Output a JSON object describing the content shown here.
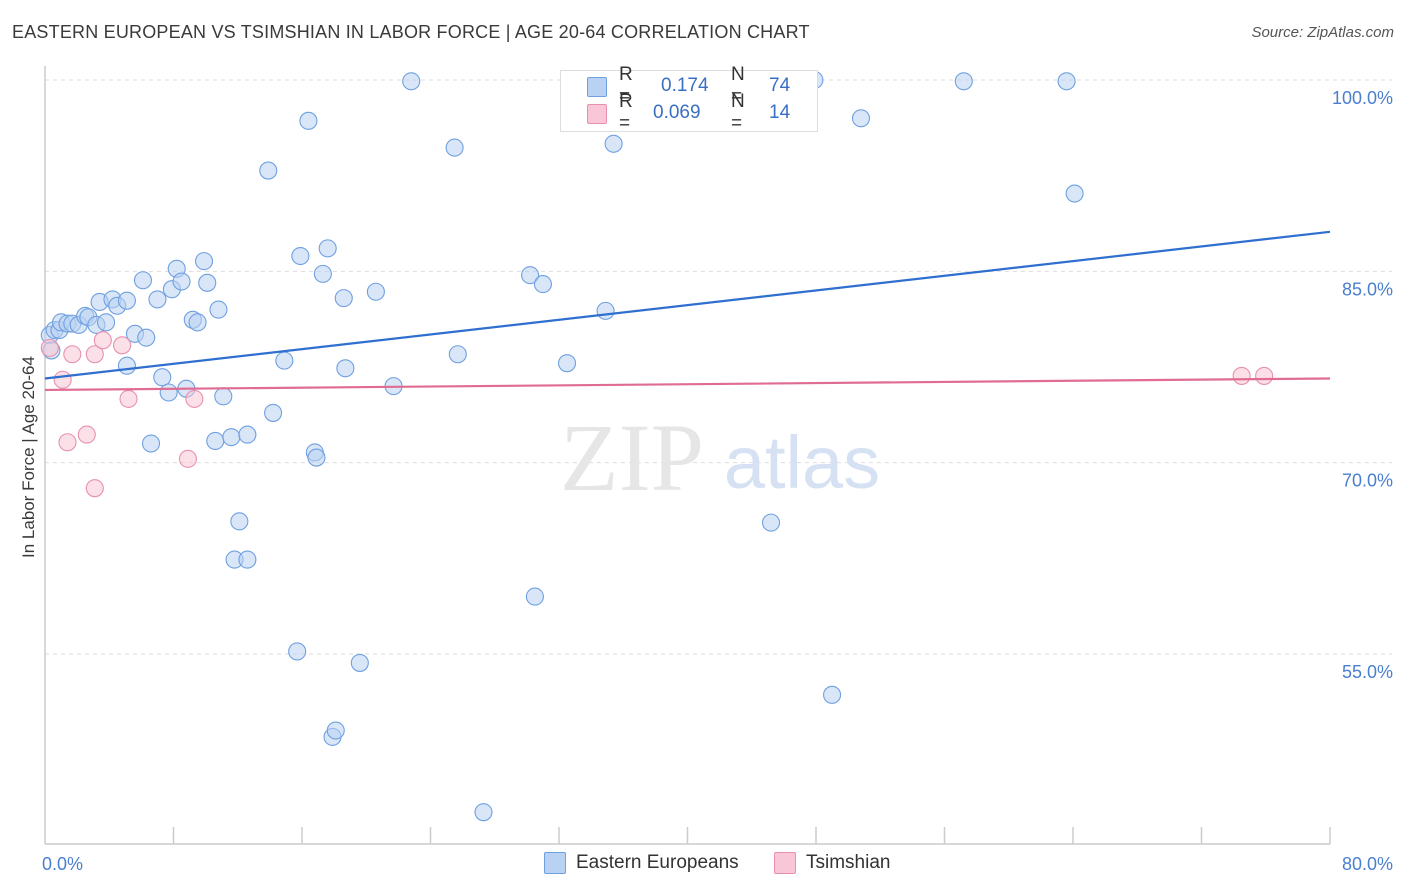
{
  "title": "EASTERN EUROPEAN VS TSIMSHIAN IN LABOR FORCE | AGE 20-64 CORRELATION CHART",
  "source": "Source: ZipAtlas.com",
  "legend": {
    "r_label": "R =",
    "n_label": "N =",
    "series": [
      {
        "name": "Eastern Europeans",
        "r": "0.174",
        "n": "74",
        "color": "#6fa0e0",
        "fill": "#b9d2f3"
      },
      {
        "name": "Tsimshian",
        "r": "0.069",
        "n": "14",
        "color": "#e890ae",
        "fill": "#f8c6d6"
      }
    ]
  },
  "chart_data": {
    "type": "scatter",
    "title": "EASTERN EUROPEAN VS TSIMSHIAN IN LABOR FORCE | AGE 20-64 CORRELATION CHART",
    "xlabel": "",
    "ylabel": "In Labor Force | Age 20-64",
    "xlim": [
      0,
      80
    ],
    "ylim": [
      40,
      102
    ],
    "x_tick_labels": [
      "0.0%",
      "80.0%"
    ],
    "y_ticks": [
      55,
      70,
      85,
      100
    ],
    "y_tick_labels": [
      "55.0%",
      "70.0%",
      "85.0%",
      "100.0%"
    ],
    "watermark": [
      "ZIP",
      "atlas"
    ],
    "series": [
      {
        "name": "Eastern Europeans",
        "color": "#6fa0e0",
        "trend": {
          "x": [
            0,
            80
          ],
          "y": [
            76.6,
            88.1
          ],
          "color": "#2e6fd0"
        },
        "points": [
          [
            0.3,
            80.0
          ],
          [
            0.4,
            78.8
          ],
          [
            0.6,
            80.4
          ],
          [
            0.9,
            80.4
          ],
          [
            1.0,
            81.0
          ],
          [
            1.4,
            80.9
          ],
          [
            1.7,
            80.9
          ],
          [
            2.1,
            80.8
          ],
          [
            2.5,
            81.5
          ],
          [
            2.7,
            81.4
          ],
          [
            3.2,
            80.8
          ],
          [
            3.4,
            82.6
          ],
          [
            3.8,
            81.0
          ],
          [
            4.2,
            82.8
          ],
          [
            4.5,
            82.3
          ],
          [
            5.1,
            82.7
          ],
          [
            5.1,
            77.6
          ],
          [
            5.6,
            80.1
          ],
          [
            6.1,
            84.3
          ],
          [
            6.3,
            79.8
          ],
          [
            6.6,
            71.5
          ],
          [
            7.0,
            82.8
          ],
          [
            7.3,
            76.7
          ],
          [
            7.7,
            75.5
          ],
          [
            7.9,
            83.6
          ],
          [
            8.2,
            85.2
          ],
          [
            8.5,
            84.2
          ],
          [
            8.8,
            75.8
          ],
          [
            9.2,
            81.2
          ],
          [
            9.5,
            81.0
          ],
          [
            9.9,
            85.8
          ],
          [
            10.1,
            84.1
          ],
          [
            10.6,
            71.7
          ],
          [
            10.8,
            82.0
          ],
          [
            11.1,
            75.2
          ],
          [
            11.6,
            72.0
          ],
          [
            11.8,
            62.4
          ],
          [
            12.1,
            65.4
          ],
          [
            12.6,
            72.2
          ],
          [
            12.6,
            62.4
          ],
          [
            13.9,
            92.9
          ],
          [
            14.2,
            73.9
          ],
          [
            14.9,
            78.0
          ],
          [
            15.7,
            55.2
          ],
          [
            15.9,
            86.2
          ],
          [
            16.4,
            96.8
          ],
          [
            16.8,
            70.8
          ],
          [
            16.9,
            70.4
          ],
          [
            17.3,
            84.8
          ],
          [
            17.6,
            86.8
          ],
          [
            17.9,
            48.5
          ],
          [
            18.1,
            49.0
          ],
          [
            18.6,
            82.9
          ],
          [
            18.7,
            77.4
          ],
          [
            19.6,
            54.3
          ],
          [
            20.6,
            83.4
          ],
          [
            21.7,
            76.0
          ],
          [
            22.8,
            99.9
          ],
          [
            25.5,
            94.7
          ],
          [
            25.7,
            78.5
          ],
          [
            27.3,
            42.6
          ],
          [
            30.2,
            84.7
          ],
          [
            30.5,
            59.5
          ],
          [
            31.0,
            84.0
          ],
          [
            32.5,
            77.8
          ],
          [
            34.9,
            81.9
          ],
          [
            35.4,
            95.0
          ],
          [
            45.2,
            65.3
          ],
          [
            47.9,
            100.0
          ],
          [
            49.0,
            51.8
          ],
          [
            50.8,
            97.0
          ],
          [
            57.2,
            99.9
          ],
          [
            63.6,
            99.9
          ],
          [
            64.1,
            91.1
          ]
        ]
      },
      {
        "name": "Tsimshian",
        "color": "#e890ae",
        "trend": {
          "x": [
            0,
            80
          ],
          "y": [
            75.7,
            76.6
          ],
          "color": "#e06c92"
        },
        "points": [
          [
            0.3,
            79.0
          ],
          [
            1.1,
            76.5
          ],
          [
            1.4,
            71.6
          ],
          [
            1.7,
            78.5
          ],
          [
            2.6,
            72.2
          ],
          [
            3.1,
            68.0
          ],
          [
            3.1,
            78.5
          ],
          [
            3.6,
            79.6
          ],
          [
            4.8,
            79.2
          ],
          [
            5.2,
            75.0
          ],
          [
            8.9,
            70.3
          ],
          [
            9.3,
            75.0
          ],
          [
            74.5,
            76.8
          ],
          [
            75.9,
            76.8
          ]
        ]
      }
    ]
  }
}
